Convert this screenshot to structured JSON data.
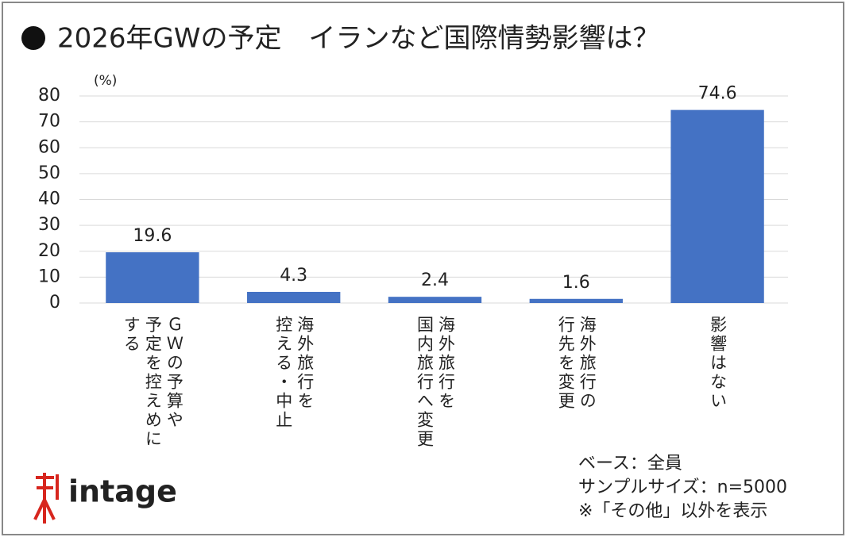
{
  "chart_data": {
    "type": "bar",
    "title": "2026年GWの予定　イランなど国際情勢影響は？",
    "y_unit": "(%)",
    "categories": [
      "ＧＷの予算や\n予定を控えめに\nする",
      "海外旅行を\n控える・中止",
      "海外旅行を\n国内旅行へ変更",
      "海外旅行の\n行先を変更",
      "影響はない"
    ],
    "values": [
      19.6,
      4.3,
      2.4,
      1.6,
      74.6
    ],
    "color": "#4472c4",
    "ylim": [
      0,
      80
    ],
    "yticks": [
      0,
      10,
      20,
      30,
      40,
      50,
      60,
      70,
      80
    ],
    "grid": true,
    "notes": [
      "ベース：全員",
      "サンプルサイズ：n=5000",
      "※「その他」以外を表示"
    ],
    "logo": "intage"
  }
}
